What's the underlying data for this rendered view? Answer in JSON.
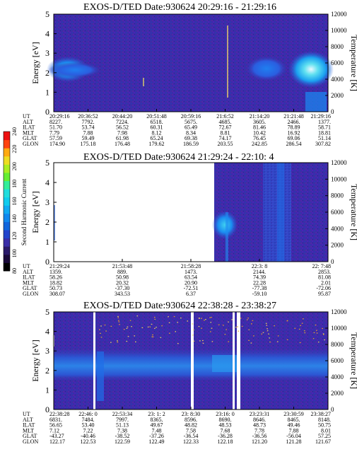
{
  "colors": {
    "background": "#ffffff",
    "spectrogram_base": "#3a2ea8",
    "high_intensity": "#19c8e8",
    "colorbar": [
      "#000000",
      "#1a0a3a",
      "#2a1a6a",
      "#3a2ea8",
      "#2244cc",
      "#1166dd",
      "#1188ee",
      "#11aaf2",
      "#11ccee",
      "#22dddd",
      "#33ee99",
      "#66ee33",
      "#aaee22",
      "#eedd22",
      "#ffaa11",
      "#ff4411",
      "#ee1111"
    ]
  },
  "colorbar": {
    "label": "Second Harmonic Current",
    "ticks": [
      "80",
      "100",
      "120",
      "140",
      "160",
      "180",
      "200",
      "220",
      "240"
    ]
  },
  "chart_data": [
    {
      "type": "heatmap",
      "title": "EXOS-D/TED   Date:930624  20:29:16 - 21:29:16",
      "ylabel": "Energy [eV]",
      "ylabel_right": "Temperature [K]",
      "ylim": [
        0,
        5
      ],
      "yticks": [
        "0",
        "1",
        "2",
        "3",
        "4",
        "5"
      ],
      "ylim_right": [
        0,
        12000
      ],
      "yticks_right": [
        "0",
        "2000",
        "4000",
        "6000",
        "8000",
        "10000",
        "12000"
      ],
      "data_gaps": [],
      "orbit_table": {
        "rows": [
          "UT",
          "ALT",
          "ILAT",
          "MLT",
          "GLAT",
          "GLON"
        ],
        "columns": [
          [
            "20:29:16",
            "8227.",
            "51.70",
            "7.79",
            "57.59",
            "174.90"
          ],
          [
            "20:36:52",
            "7792.",
            "53.74",
            "7.88",
            "59.49",
            "175.18"
          ],
          [
            "20:44:20",
            "7224.",
            "56.52",
            "7.98",
            "61.98",
            "176.48"
          ],
          [
            "20:51:48",
            "6518.",
            "60.31",
            "8.12",
            "65.24",
            "179.62"
          ],
          [
            "20:59:16",
            "5675.",
            "65.49",
            "8.34",
            "69.38",
            "186.59"
          ],
          [
            "21:6:52",
            "4685.",
            "72.67",
            "8.81",
            "74.17",
            "203.55"
          ],
          [
            "21:14:20",
            "3605.",
            "81.46",
            "10.42",
            "76.45",
            "242.85"
          ],
          [
            "21:21:48",
            "2466.",
            "78.89",
            "16.92",
            "69.06",
            "286.54"
          ],
          [
            "21:29:16",
            "1377.",
            "58.71",
            "18.81",
            "51.14",
            "307.82"
          ]
        ]
      }
    },
    {
      "type": "heatmap",
      "title": "EXOS-D/TED   Date:930624  21:29:24 - 22:10: 4",
      "ylabel": "Energy [eV]",
      "ylabel_right": "Temperature [K]",
      "ylim": [
        0,
        5
      ],
      "yticks": [
        "0",
        "1",
        "2",
        "3",
        "4",
        "5"
      ],
      "ylim_right": [
        0,
        12000
      ],
      "yticks_right": [
        "0",
        "2000",
        "4000",
        "6000",
        "8000",
        "10000",
        "12000"
      ],
      "data_gaps": [
        [
          "21:29:24",
          "21:53:48"
        ]
      ],
      "orbit_table": {
        "rows": [
          "UT",
          "ALT",
          "ILAT",
          "MLT",
          "GLAT",
          "GLON"
        ],
        "columns": [
          [
            "21:29:24",
            "1359.",
            "58.26",
            "18.82",
            "50.73",
            "308.07"
          ],
          [
            "21:53:48",
            "889.",
            "50.98",
            "20.32",
            "-37.30",
            "343.53"
          ],
          [
            "21:58:28",
            "1473.",
            "63.54",
            "20.90",
            "-72.51",
            "6.37"
          ],
          [
            "22:3: 8",
            "2144.",
            "74.39",
            "22.28",
            "-77.38",
            "-59.10"
          ],
          [
            "22: 7:48",
            "2853.",
            "81.08",
            "2.01",
            "-72.06",
            "95.87"
          ]
        ]
      }
    },
    {
      "type": "heatmap",
      "title": "EXOS-D/TED   Date:930624  22:38:28 - 23:38:27",
      "ylabel": "Energy [eV]",
      "ylabel_right": "Temperature [K]",
      "ylim": [
        0,
        5
      ],
      "yticks": [
        "0",
        "1",
        "2",
        "3",
        "4",
        "5"
      ],
      "ylim_right": [
        0,
        12000
      ],
      "yticks_right": [
        "0",
        "2000",
        "4000",
        "6000",
        "8000",
        "10000",
        "12000"
      ],
      "data_gaps": [],
      "orbit_table": {
        "rows": [
          "UT",
          "ALT",
          "ILAT",
          "MLT",
          "GLAT",
          "GLON"
        ],
        "columns": [
          [
            "22:38:28",
            "6831.",
            "56.65",
            "7.12",
            "-43.27",
            "122.17"
          ],
          [
            "22:46: 0",
            "7484.",
            "53.40",
            "7.22",
            "-40.46",
            "122.53"
          ],
          [
            "22:53:34",
            "7997.",
            "51.13",
            "7.38",
            "-38.52",
            "122.59"
          ],
          [
            "23: 1: 2",
            "8365.",
            "49.67",
            "7.48",
            "-37.26",
            "122.49"
          ],
          [
            "23: 8:30",
            "8596.",
            "48.82",
            "7.58",
            "-36.54",
            "122.33"
          ],
          [
            "23:16: 0",
            "8690.",
            "48.53",
            "7.68",
            "-36.28",
            "122.18"
          ],
          [
            "23:23:31",
            "8646.",
            "48.73",
            "7.78",
            "-36.56",
            "121.20"
          ],
          [
            "23:30:59",
            "8465.",
            "49.46",
            "7.88",
            "-56.04",
            "121.28"
          ],
          [
            "23:38:27",
            "8148.",
            "50.75",
            "8.01",
            "57.25",
            "121.67"
          ]
        ]
      }
    }
  ]
}
